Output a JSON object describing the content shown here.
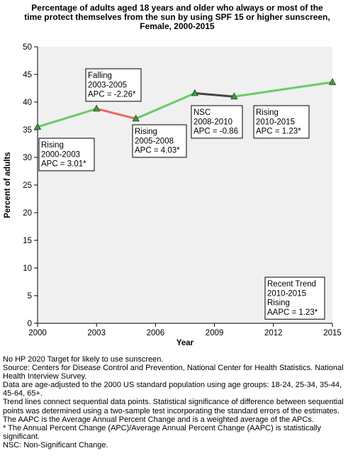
{
  "chart_data": {
    "type": "line",
    "title_lines": [
      "Percentage of adults aged 18 years and older who always or most of the",
      "time protect themselves from the sun by using SPF 15 or higher sunscreen,",
      "Female,  2000-2015"
    ],
    "xlabel": "Year",
    "ylabel": "Percent of adults",
    "xlim": [
      2000,
      2015
    ],
    "ylim": [
      0,
      50
    ],
    "x_ticks": [
      2000,
      2003,
      2006,
      2009,
      2012,
      2015
    ],
    "y_ticks": [
      0,
      5,
      10,
      15,
      20,
      25,
      30,
      35,
      40,
      45,
      50
    ],
    "grid": false,
    "points": [
      {
        "x": 2000,
        "y": 35.5
      },
      {
        "x": 2003,
        "y": 38.8
      },
      {
        "x": 2005,
        "y": 37.0
      },
      {
        "x": 2008,
        "y": 41.6
      },
      {
        "x": 2010,
        "y": 41.0
      },
      {
        "x": 2015,
        "y": 43.6
      }
    ],
    "trend_segments": [
      {
        "x": [
          2000,
          2003
        ],
        "y": [
          35.5,
          38.8
        ],
        "color": "#66cc66"
      },
      {
        "x": [
          2003,
          2005
        ],
        "y": [
          38.8,
          37.0
        ],
        "color": "#ee6666"
      },
      {
        "x": [
          2005,
          2008
        ],
        "y": [
          37.0,
          41.6
        ],
        "color": "#66cc66"
      },
      {
        "x": [
          2008,
          2010
        ],
        "y": [
          41.6,
          41.0
        ],
        "color": "#444444"
      },
      {
        "x": [
          2010,
          2015
        ],
        "y": [
          41.0,
          43.6
        ],
        "color": "#66cc66"
      }
    ],
    "annotations": [
      {
        "lines": [
          "Rising",
          "2000-2003",
          "APC =  3.01*"
        ]
      },
      {
        "lines": [
          "Falling",
          "2003-2005",
          "APC = -2.26*"
        ]
      },
      {
        "lines": [
          "Rising",
          "2005-2008",
          "APC =  4.03*"
        ]
      },
      {
        "lines": [
          "NSC",
          "2008-2010",
          "APC = -0.86"
        ]
      },
      {
        "lines": [
          "Rising",
          "2010-2015",
          "APC =  1.23*"
        ]
      },
      {
        "lines": [
          "Recent Trend",
          "2010-2015",
          "Rising",
          "AAPC =  1.23*"
        ]
      }
    ],
    "colors": {
      "rising": "#66cc66",
      "falling": "#ee6666",
      "nsc": "#444444",
      "plot_background": "#f0f0f0"
    }
  },
  "notes": [
    "No HP 2020 Target for likely to use sunscreen.",
    "Source: Centers for Disease Control and Prevention, National Center for Health Statistics. National Health Interview Survey.",
    "Data are age-adjusted to the 2000 US standard population using age groups: 18-24, 25-34, 35-44, 45-64, 65+.",
    "Trend lines connect sequential data points. Statistical significance of difference between sequential points was determined using a two-sample test incorporating the standard errors of the estimates.",
    "The AAPC is the Average Annual Percent Change and is a weighted average of the APCs.",
    "* The Annual Percent Change (APC)/Average Annual Percent Change (AAPC) is statistically significant.",
    "NSC: Non-Significant Change."
  ]
}
